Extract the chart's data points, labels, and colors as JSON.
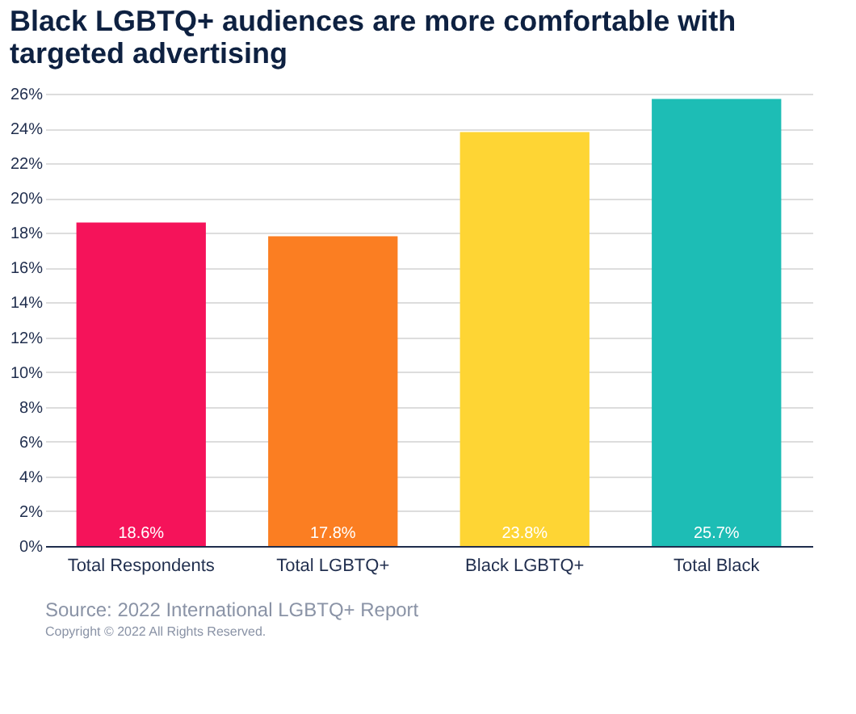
{
  "chart_data": {
    "type": "bar",
    "title": "Black LGBTQ+ audiences are more comfortable with targeted advertising",
    "categories": [
      "Total Respondents",
      "Total LGBTQ+",
      "Black LGBTQ+",
      "Total Black"
    ],
    "values": [
      18.6,
      17.8,
      23.8,
      25.7
    ],
    "colors": [
      "#f5135a",
      "#fb7e22",
      "#fed534",
      "#1dbdb5"
    ],
    "value_labels": [
      "18.6%",
      "17.8%",
      "23.8%",
      "25.7%"
    ],
    "ylim": [
      0,
      26
    ],
    "yticks": [
      {
        "value": 0,
        "label": "0%"
      },
      {
        "value": 2,
        "label": "2%"
      },
      {
        "value": 4,
        "label": "4%"
      },
      {
        "value": 6,
        "label": "6%"
      },
      {
        "value": 8,
        "label": "8%"
      },
      {
        "value": 10,
        "label": "10%"
      },
      {
        "value": 12,
        "label": "12%"
      },
      {
        "value": 14,
        "label": "14%"
      },
      {
        "value": 16,
        "label": "16%"
      },
      {
        "value": 18,
        "label": "18%"
      },
      {
        "value": 20,
        "label": "20%"
      },
      {
        "value": 22,
        "label": "22%"
      },
      {
        "value": 24,
        "label": "24%"
      },
      {
        "value": 26,
        "label": "26%"
      }
    ],
    "grid": "y",
    "annotations": [
      "Source: 2022 International LGBTQ+ Report",
      "Copyright © 2022 All Rights Reserved."
    ]
  }
}
